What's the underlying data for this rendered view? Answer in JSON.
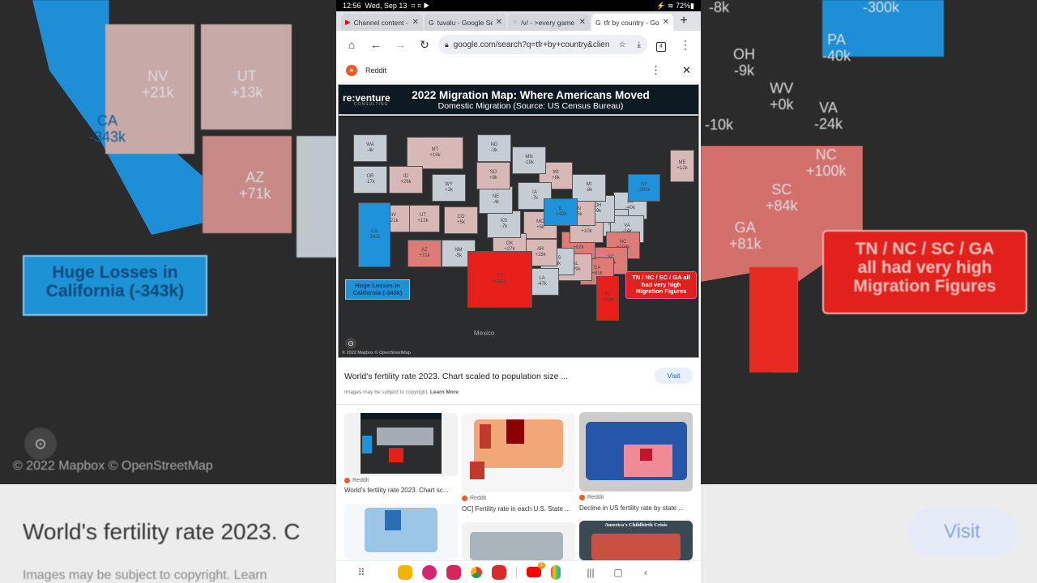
{
  "background": {
    "left_labels": [
      "NV\n+21k",
      "UT\n+13k",
      "CA\n-343k",
      "AZ\n+71k"
    ],
    "left_callout": "Huge Losses in\nCalifornia (-343k)",
    "left_attribution": "© 2022 Mapbox © OpenStreetMap",
    "left_result_title": "World's fertility rate 2023. C",
    "left_copyright": "Images may be subject to copyright. Learn",
    "right_labels": [
      "PA\n-40k",
      "OH\n-9k",
      "WV\n+0k",
      "VA\n-24k",
      "NC\n+100k",
      "SC\n+84k",
      "GA\n+81k",
      "-300k",
      "-10k",
      "-8k"
    ],
    "right_callout": "TN / NC / SC / GA\nall had very high\nMigration Figures",
    "right_visit": "Visit"
  },
  "status_bar": {
    "time": "12:56",
    "date": "Wed, Sep 13",
    "battery": "72%"
  },
  "tabs": [
    {
      "title": "Channel content -",
      "icon": "youtube-icon",
      "active": false
    },
    {
      "title": "tuvalu - Google Se",
      "icon": "google-icon",
      "active": false
    },
    {
      "title": "/v/ - >every game",
      "icon": "grid-icon",
      "active": false
    },
    {
      "title": "tfr by country - Go",
      "icon": "google-icon",
      "active": true
    }
  ],
  "toolbar": {
    "url": "google.com/search?q=tfr+by+country&clien",
    "tab_count": "4"
  },
  "source": {
    "name": "Reddit"
  },
  "map": {
    "brand": "re:venture",
    "brand_sub": "CONSULTING",
    "title": "2022 Migration Map: Where Americans Moved",
    "subtitle": "Domestic Migration (Source: US Census Bureau)",
    "colors": {
      "large_loss": "#1e93dc",
      "small_loss": "#c4ccd4",
      "small_gain": "#d8b8b6",
      "medium_gain": "#e07a76",
      "large_gain": "#e8201c"
    },
    "states": [
      {
        "code": "WA",
        "value": "-4k",
        "level": "small_loss"
      },
      {
        "code": "OR",
        "value": "-17k",
        "level": "small_loss"
      },
      {
        "code": "CA",
        "value": "-343k",
        "level": "large_loss"
      },
      {
        "code": "ID",
        "value": "+29k",
        "level": "small_gain"
      },
      {
        "code": "NV",
        "value": "+21k",
        "level": "small_gain"
      },
      {
        "code": "MT",
        "value": "+16k",
        "level": "small_gain"
      },
      {
        "code": "WY",
        "value": "+2k",
        "level": "small_loss"
      },
      {
        "code": "UT",
        "value": "+13k",
        "level": "small_gain"
      },
      {
        "code": "CO",
        "value": "+5k",
        "level": "small_gain"
      },
      {
        "code": "AZ",
        "value": "+71k",
        "level": "medium_gain"
      },
      {
        "code": "NM",
        "value": "-5k",
        "level": "small_loss"
      },
      {
        "code": "ND",
        "value": "-3k",
        "level": "small_loss"
      },
      {
        "code": "SD",
        "value": "+8k",
        "level": "small_gain"
      },
      {
        "code": "NE",
        "value": "-4k",
        "level": "small_loss"
      },
      {
        "code": "KS",
        "value": "-7k",
        "level": "small_loss"
      },
      {
        "code": "OK",
        "value": "+27k",
        "level": "small_gain"
      },
      {
        "code": "TX",
        "value": "+231k",
        "level": "large_gain"
      },
      {
        "code": "MN",
        "value": "-19k",
        "level": "small_loss"
      },
      {
        "code": "IA",
        "value": "-7k",
        "level": "small_loss"
      },
      {
        "code": "MO",
        "value": "+5k",
        "level": "small_gain"
      },
      {
        "code": "AR",
        "value": "+18k",
        "level": "small_gain"
      },
      {
        "code": "LA",
        "value": "-47k",
        "level": "small_loss"
      },
      {
        "code": "WI",
        "value": "+8k",
        "level": "small_gain"
      },
      {
        "code": "IL",
        "value": "-142k",
        "level": "large_loss"
      },
      {
        "code": "MS",
        "value": "-6k",
        "level": "small_loss"
      },
      {
        "code": "AL",
        "value": "+29k",
        "level": "small_gain"
      },
      {
        "code": "MI",
        "value": "-8k",
        "level": "small_loss"
      },
      {
        "code": "IN",
        "value": "+5k",
        "level": "small_gain"
      },
      {
        "code": "OH",
        "value": "-9k",
        "level": "small_loss"
      },
      {
        "code": "KY",
        "value": "+10k",
        "level": "small_gain"
      },
      {
        "code": "TN",
        "value": "+82k",
        "level": "medium_gain"
      },
      {
        "code": "GA",
        "value": "+81k",
        "level": "medium_gain"
      },
      {
        "code": "FL",
        "value": "+319k",
        "level": "large_gain"
      },
      {
        "code": "SC",
        "value": "+84k",
        "level": "medium_gain"
      },
      {
        "code": "NC",
        "value": "+100k",
        "level": "medium_gain"
      },
      {
        "code": "VA",
        "value": "-24k",
        "level": "small_loss"
      },
      {
        "code": "WV",
        "value": "+0k",
        "level": "small_loss"
      },
      {
        "code": "PA",
        "value": "-40k",
        "level": "small_loss"
      },
      {
        "code": "NY",
        "value": "-300k",
        "level": "large_loss"
      },
      {
        "code": "ME",
        "value": "+12k",
        "level": "small_gain"
      }
    ],
    "callout_ca": "Huge Losses in California (-343k)",
    "callout_se": "TN / NC / SC / GA all had very high Migration Figures",
    "mexico_label": "Mexico",
    "attribution": "© 2022 Mapbox © OpenStreetMap"
  },
  "result": {
    "title": "World's fertility rate 2023. Chart scaled to population size ...",
    "copyright": "Images may be subject to copyright.",
    "learn_more": "Learn More",
    "visit": "Visit"
  },
  "related": [
    {
      "source": "Reddit",
      "caption": "World's fertility rate 2023. Chart sc..."
    },
    {
      "source": "Reddit",
      "caption": "OC] Fertility rate in each U.S. State ..."
    },
    {
      "source": "Reddit",
      "caption": "Decline in US fertility rate by state ..."
    },
    {
      "title": "America's Childbirth Crisis"
    }
  ],
  "navbar": {
    "youtube_badge": "1"
  }
}
